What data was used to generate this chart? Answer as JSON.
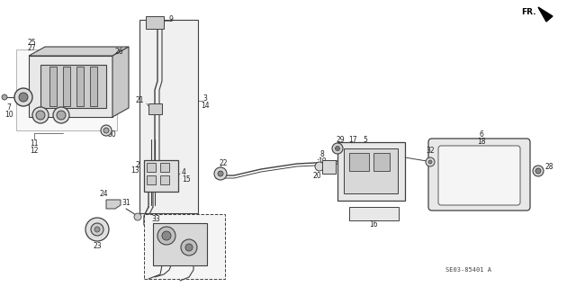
{
  "diagram_id": "SE03-85401 A",
  "bg_color": "#ffffff",
  "line_color": "#404040",
  "text_color": "#222222",
  "figsize": [
    6.4,
    3.19
  ],
  "dpi": 100
}
